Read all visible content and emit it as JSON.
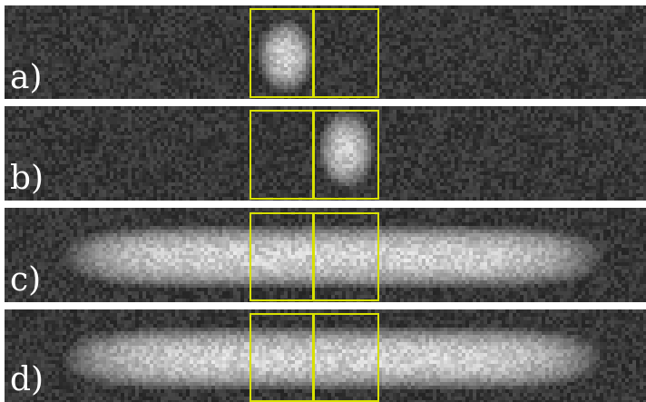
{
  "figure": {
    "panels": [
      {
        "id": "a",
        "label": "a)",
        "content": "single-spot-left"
      },
      {
        "id": "b",
        "label": "b)",
        "content": "single-spot-right"
      },
      {
        "id": "c",
        "label": "c)",
        "content": "elongated-cloud"
      },
      {
        "id": "d",
        "label": "d)",
        "content": "elongated-cloud"
      }
    ],
    "colors": {
      "background": "#2e2e2e",
      "roi": "#d8e000",
      "signal": "#ffffff",
      "separator": "#ffffff"
    }
  }
}
